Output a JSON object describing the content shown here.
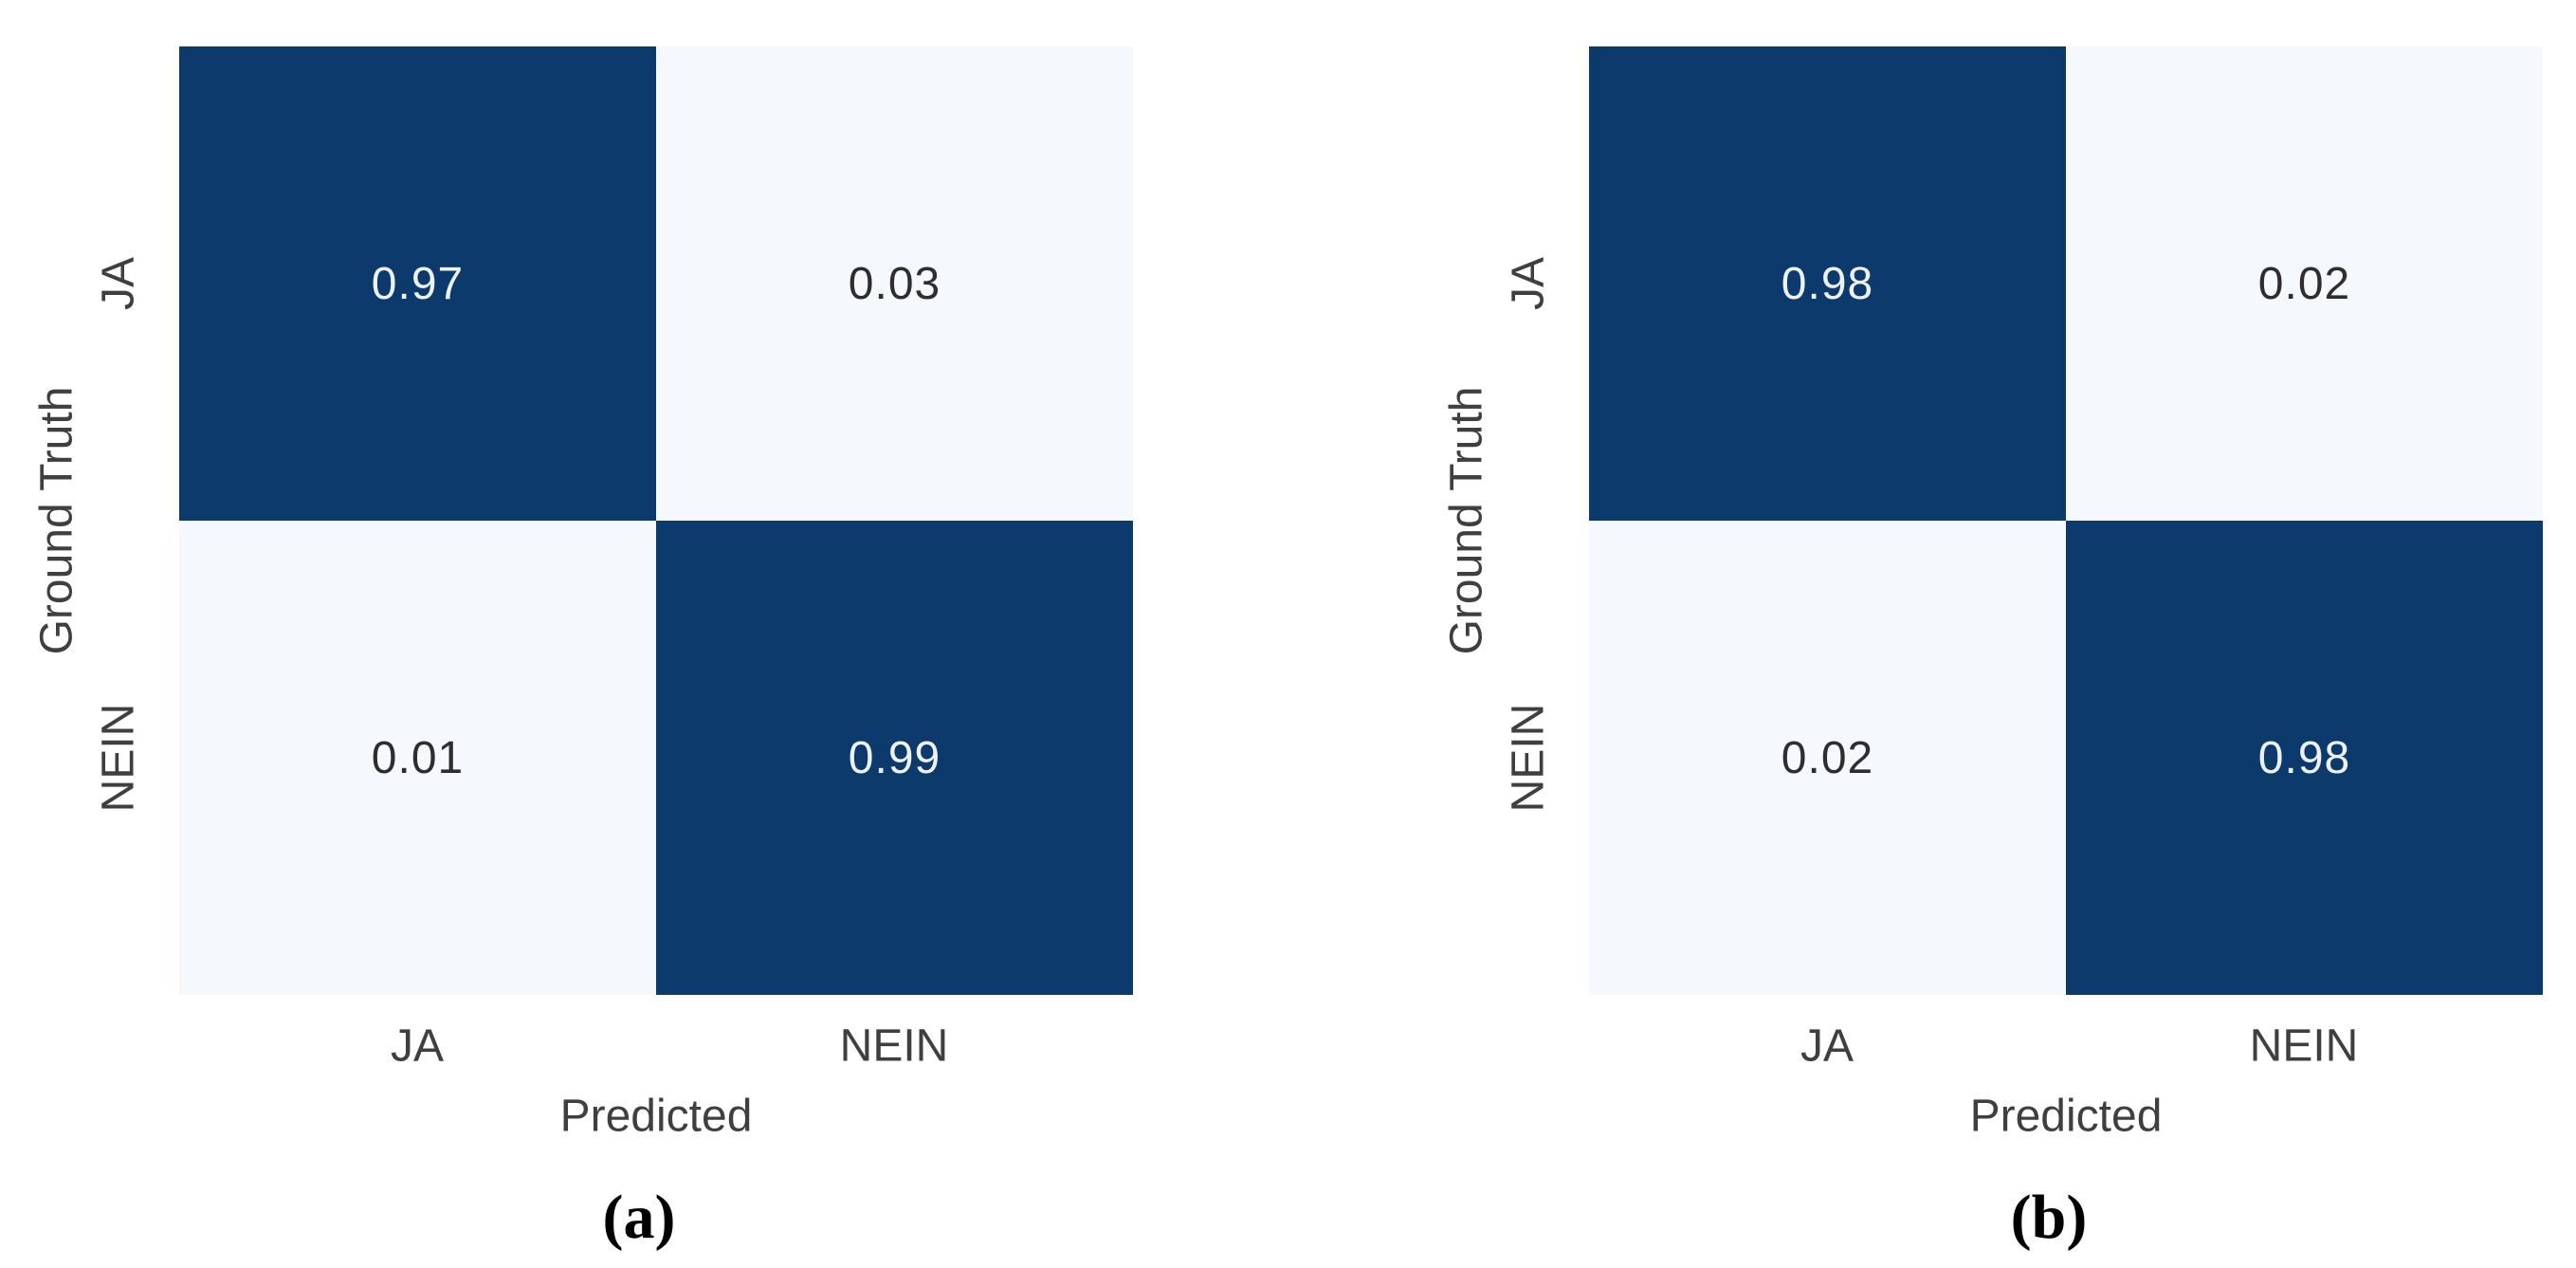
{
  "figure": {
    "background": "#ffffff",
    "description": "Two normalized 2x2 confusion matrices (heatmaps, Blues colormap) side by side, labeled (a) and (b)."
  },
  "colors": {
    "cell_high": "#0d3a6d",
    "cell_low": "#f5f8fd",
    "text_on_high": "#eef2f7",
    "text_on_low": "#2e2e2e",
    "label_color": "#3f3f3f",
    "background": "#ffffff"
  },
  "chart_data": [
    {
      "type": "heatmap",
      "caption": "(a)",
      "xlabel": "Predicted",
      "ylabel": "Ground Truth",
      "x_categories": [
        "JA",
        "NEIN"
      ],
      "y_categories": [
        "JA",
        "NEIN"
      ],
      "values": [
        [
          0.97,
          0.03
        ],
        [
          0.01,
          0.99
        ]
      ],
      "colormap": "Blues",
      "vmin": 0,
      "vmax": 1,
      "legend": "none",
      "grid": "off"
    },
    {
      "type": "heatmap",
      "caption": "(b)",
      "xlabel": "Predicted",
      "ylabel": "Ground Truth",
      "x_categories": [
        "JA",
        "NEIN"
      ],
      "y_categories": [
        "JA",
        "NEIN"
      ],
      "values": [
        [
          0.98,
          0.02
        ],
        [
          0.02,
          0.98
        ]
      ],
      "colormap": "Blues",
      "vmin": 0,
      "vmax": 1,
      "legend": "none",
      "grid": "off"
    }
  ]
}
